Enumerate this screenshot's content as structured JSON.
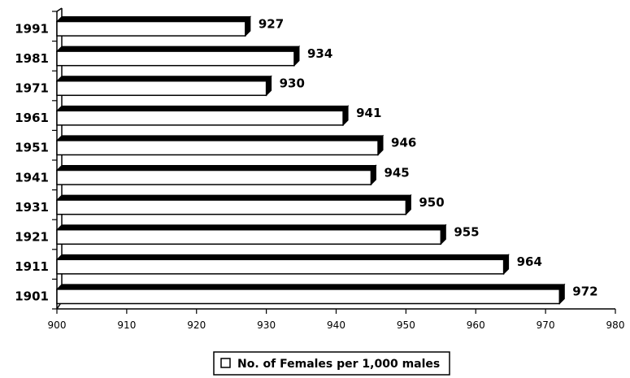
{
  "chart_data": {
    "type": "bar",
    "orientation": "horizontal",
    "style": "3d",
    "categories": [
      "1991",
      "1981",
      "1971",
      "1961",
      "1951",
      "1941",
      "1931",
      "1921",
      "1911",
      "1901"
    ],
    "series": [
      {
        "name": "No. of Females per 1,000 males",
        "values": [
          927,
          934,
          930,
          941,
          946,
          945,
          950,
          955,
          964,
          972
        ],
        "color": "#ffffff",
        "edge_color": "#000000"
      }
    ],
    "data_labels": [
      "927",
      "934",
      "930",
      "941",
      "946",
      "945",
      "950",
      "955",
      "964",
      "972"
    ],
    "xlim": [
      900,
      980
    ],
    "x_ticks": [
      "900",
      "910",
      "920",
      "930",
      "940",
      "950",
      "960",
      "970",
      "980"
    ],
    "title": "",
    "xlabel": "",
    "ylabel": "",
    "grid": false,
    "legend": {
      "position": "bottom-center",
      "entries": [
        "No. of Females per 1,000 males"
      ]
    }
  }
}
